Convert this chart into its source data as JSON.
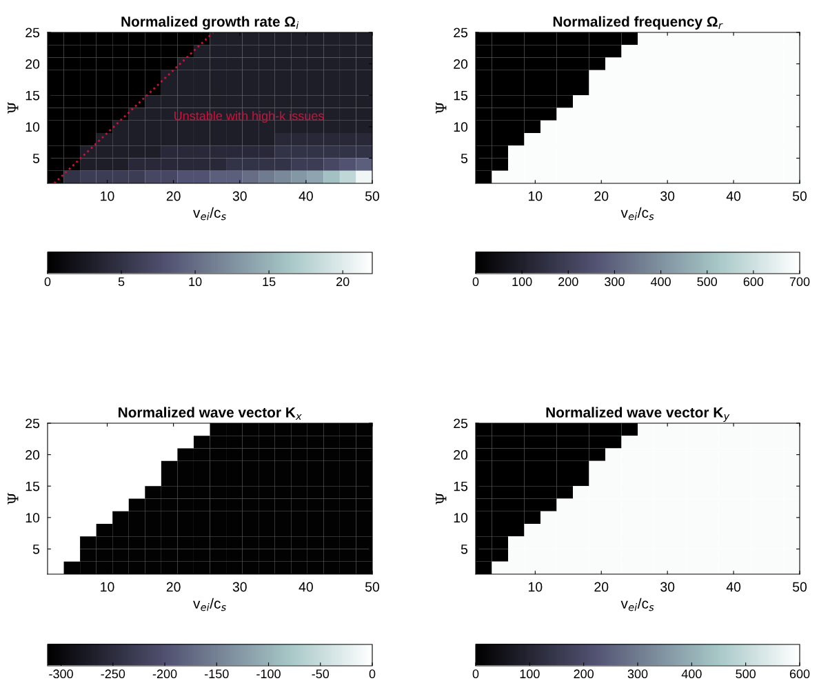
{
  "chart_data": [
    {
      "type": "heatmap",
      "title": "Normalized growth rate Ω$_{i}$",
      "xlabel": "v$_{ei}$/c$_{s}$",
      "ylabel": "Ψ",
      "x": [
        2.225,
        4.675,
        7.125,
        9.575,
        12.025,
        14.475,
        16.925,
        19.375,
        21.825,
        24.275,
        26.725,
        29.175,
        31.625,
        34.075,
        36.525,
        38.975,
        41.425,
        43.875,
        46.325,
        48.775
      ],
      "y": [
        24,
        22,
        20,
        18,
        16,
        14,
        12,
        10,
        8,
        6,
        4,
        2
      ],
      "xlim": [
        1,
        50
      ],
      "xticks": [
        10,
        20,
        30,
        40,
        50
      ],
      "ylim": [
        1,
        25
      ],
      "yticks": [
        5,
        10,
        15,
        20,
        25
      ],
      "clim": [
        0,
        22
      ],
      "cticks": [
        0,
        5,
        10,
        15,
        20
      ],
      "cells": [
        [
          0,
          0,
          0,
          0,
          0,
          0,
          0,
          0,
          0,
          0,
          3,
          3,
          3,
          3,
          3,
          3,
          3,
          3,
          3,
          3
        ],
        [
          0,
          0,
          0,
          0,
          0,
          0,
          0,
          0,
          0,
          3,
          3,
          3,
          3,
          3,
          3,
          3,
          3,
          3,
          3,
          3
        ],
        [
          0,
          0,
          0,
          0,
          0,
          0,
          0,
          0,
          3,
          3,
          3,
          3,
          3,
          3,
          3,
          3,
          3,
          3,
          3,
          3
        ],
        [
          0,
          0,
          0,
          0,
          0,
          0,
          0,
          3,
          3,
          3,
          3,
          3,
          3,
          3,
          3,
          3,
          3,
          3,
          3,
          3
        ],
        [
          0,
          0,
          0,
          0,
          0,
          0,
          0,
          3,
          3,
          3,
          3,
          3,
          3,
          3,
          3,
          3,
          3,
          3,
          3,
          3
        ],
        [
          0,
          0,
          0,
          0,
          0,
          0,
          3,
          3,
          3,
          3,
          3,
          3,
          3,
          3,
          3,
          3,
          3,
          3,
          3,
          3
        ],
        [
          0,
          0,
          0,
          0,
          0,
          3,
          3,
          3,
          3,
          3,
          3,
          3,
          3,
          3,
          3,
          3,
          3,
          3,
          3,
          3
        ],
        [
          0,
          0,
          0,
          0,
          3,
          3,
          3,
          3,
          3,
          3,
          3,
          3,
          3,
          3,
          3,
          3,
          3,
          3,
          3,
          3
        ],
        [
          0,
          0,
          0,
          3,
          3,
          3,
          3,
          3,
          3,
          3,
          3,
          3,
          3,
          3,
          4,
          4,
          4,
          4,
          4,
          4
        ],
        [
          0,
          0,
          3,
          3,
          3,
          3,
          3,
          4,
          4,
          4,
          4,
          4,
          4,
          4,
          5,
          5,
          5,
          5,
          5,
          5
        ],
        [
          0,
          0,
          3,
          3,
          3,
          4,
          4,
          4,
          4,
          4,
          4,
          5,
          5,
          5,
          5,
          6,
          6,
          7,
          8,
          9
        ],
        [
          0,
          5,
          6,
          6,
          6,
          6,
          7,
          7,
          8,
          8,
          9,
          9,
          10,
          11,
          12,
          13,
          14,
          16,
          18,
          21
        ]
      ],
      "series": [
        {
          "type": "line",
          "x": [
            2,
            26
          ],
          "values": [
            1,
            25
          ],
          "color": "#d0103a",
          "line_style": "dotted"
        }
      ],
      "annotations": [
        "Unstable with high-k issues"
      ]
    },
    {
      "type": "heatmap",
      "title": "Normalized frequency Ω$_{r}$",
      "xlabel": "v$_{ei}$/c$_{s}$",
      "ylabel": "Ψ",
      "x": [
        2.225,
        4.675,
        7.125,
        9.575,
        12.025,
        14.475,
        16.925,
        19.375,
        21.825,
        24.275,
        26.725,
        29.175,
        31.625,
        34.075,
        36.525,
        38.975,
        41.425,
        43.875,
        46.325,
        48.775
      ],
      "y": [
        24,
        22,
        20,
        18,
        16,
        14,
        12,
        10,
        8,
        6,
        4,
        2
      ],
      "xlim": [
        1,
        50
      ],
      "xticks": [
        10,
        20,
        30,
        40,
        50
      ],
      "ylim": [
        1,
        25
      ],
      "yticks": [
        5,
        10,
        15,
        20,
        25
      ],
      "clim": [
        0,
        700
      ],
      "cticks": [
        0,
        100,
        200,
        300,
        400,
        500,
        600,
        700
      ],
      "cells": [
        [
          0,
          0,
          0,
          0,
          0,
          0,
          0,
          0,
          0,
          0,
          690,
          690,
          690,
          690,
          690,
          690,
          690,
          690,
          690,
          690
        ],
        [
          0,
          0,
          0,
          0,
          0,
          0,
          0,
          0,
          0,
          690,
          690,
          690,
          690,
          690,
          690,
          690,
          690,
          690,
          690,
          690
        ],
        [
          0,
          0,
          0,
          0,
          0,
          0,
          0,
          0,
          690,
          690,
          690,
          690,
          690,
          690,
          690,
          690,
          690,
          690,
          690,
          690
        ],
        [
          0,
          0,
          0,
          0,
          0,
          0,
          0,
          690,
          690,
          690,
          690,
          690,
          690,
          690,
          690,
          690,
          690,
          690,
          690,
          690
        ],
        [
          0,
          0,
          0,
          0,
          0,
          0,
          0,
          690,
          690,
          690,
          690,
          690,
          690,
          690,
          690,
          690,
          690,
          690,
          690,
          690
        ],
        [
          0,
          0,
          0,
          0,
          0,
          0,
          690,
          690,
          690,
          690,
          690,
          690,
          690,
          690,
          690,
          690,
          690,
          690,
          690,
          690
        ],
        [
          0,
          0,
          0,
          0,
          0,
          690,
          690,
          690,
          690,
          690,
          690,
          690,
          690,
          690,
          690,
          690,
          690,
          690,
          690,
          690
        ],
        [
          0,
          0,
          0,
          0,
          690,
          690,
          690,
          690,
          690,
          690,
          690,
          690,
          690,
          690,
          690,
          690,
          690,
          690,
          690,
          690
        ],
        [
          0,
          0,
          0,
          690,
          690,
          690,
          690,
          690,
          690,
          690,
          690,
          690,
          690,
          690,
          690,
          690,
          690,
          690,
          690,
          690
        ],
        [
          0,
          0,
          690,
          690,
          690,
          690,
          690,
          690,
          690,
          690,
          690,
          690,
          690,
          690,
          690,
          690,
          690,
          690,
          690,
          690
        ],
        [
          0,
          0,
          690,
          690,
          690,
          690,
          690,
          690,
          690,
          690,
          690,
          690,
          690,
          690,
          690,
          690,
          690,
          690,
          690,
          690
        ],
        [
          0,
          690,
          690,
          690,
          690,
          690,
          690,
          690,
          690,
          690,
          690,
          690,
          690,
          690,
          690,
          690,
          690,
          690,
          690,
          690
        ]
      ]
    },
    {
      "type": "heatmap",
      "title": "Normalized wave vector K$_{x}$",
      "xlabel": "v$_{ei}$/c$_{s}$",
      "ylabel": "Ψ",
      "x": [
        2.225,
        4.675,
        7.125,
        9.575,
        12.025,
        14.475,
        16.925,
        19.375,
        21.825,
        24.275,
        26.725,
        29.175,
        31.625,
        34.075,
        36.525,
        38.975,
        41.425,
        43.875,
        46.325,
        48.775
      ],
      "y": [
        24,
        22,
        20,
        18,
        16,
        14,
        12,
        10,
        8,
        6,
        4,
        2
      ],
      "xlim": [
        1,
        50
      ],
      "xticks": [
        10,
        20,
        30,
        40,
        50
      ],
      "ylim": [
        1,
        25
      ],
      "yticks": [
        5,
        10,
        15,
        20,
        25
      ],
      "clim": [
        -313,
        0
      ],
      "cticks": [
        -300,
        -250,
        -200,
        -150,
        -100,
        -50,
        0
      ],
      "cells": [
        [
          0,
          0,
          0,
          0,
          0,
          0,
          0,
          0,
          0,
          0,
          -310,
          -310,
          -310,
          -310,
          -310,
          -310,
          -310,
          -310,
          -310,
          -310
        ],
        [
          0,
          0,
          0,
          0,
          0,
          0,
          0,
          0,
          0,
          -310,
          -310,
          -310,
          -310,
          -310,
          -310,
          -310,
          -310,
          -310,
          -310,
          -310
        ],
        [
          0,
          0,
          0,
          0,
          0,
          0,
          0,
          0,
          -310,
          -310,
          -310,
          -310,
          -310,
          -310,
          -310,
          -310,
          -310,
          -310,
          -310,
          -310
        ],
        [
          0,
          0,
          0,
          0,
          0,
          0,
          0,
          -310,
          -310,
          -310,
          -310,
          -310,
          -310,
          -310,
          -310,
          -310,
          -310,
          -310,
          -310,
          -310
        ],
        [
          0,
          0,
          0,
          0,
          0,
          0,
          0,
          -310,
          -310,
          -310,
          -310,
          -310,
          -310,
          -310,
          -310,
          -310,
          -310,
          -310,
          -310,
          -310
        ],
        [
          0,
          0,
          0,
          0,
          0,
          0,
          -310,
          -310,
          -310,
          -310,
          -310,
          -310,
          -310,
          -310,
          -310,
          -310,
          -310,
          -310,
          -310,
          -310
        ],
        [
          0,
          0,
          0,
          0,
          0,
          -310,
          -310,
          -310,
          -310,
          -310,
          -310,
          -310,
          -310,
          -310,
          -310,
          -310,
          -310,
          -310,
          -310,
          -310
        ],
        [
          0,
          0,
          0,
          0,
          -310,
          -310,
          -310,
          -310,
          -310,
          -310,
          -310,
          -310,
          -310,
          -310,
          -310,
          -310,
          -310,
          -310,
          -310,
          -310
        ],
        [
          0,
          0,
          0,
          -310,
          -310,
          -310,
          -310,
          -310,
          -310,
          -310,
          -310,
          -310,
          -310,
          -310,
          -310,
          -310,
          -310,
          -310,
          -310,
          -310
        ],
        [
          0,
          0,
          -310,
          -310,
          -310,
          -310,
          -310,
          -310,
          -310,
          -310,
          -310,
          -310,
          -310,
          -310,
          -310,
          -310,
          -310,
          -310,
          -310,
          -310
        ],
        [
          0,
          0,
          -310,
          -310,
          -310,
          -310,
          -310,
          -310,
          -310,
          -310,
          -310,
          -310,
          -310,
          -310,
          -310,
          -310,
          -310,
          -310,
          -310,
          -310
        ],
        [
          0,
          -310,
          -310,
          -310,
          -310,
          -310,
          -310,
          -310,
          -310,
          -310,
          -310,
          -310,
          -310,
          -310,
          -310,
          -310,
          -310,
          -310,
          -310,
          -310
        ]
      ]
    },
    {
      "type": "heatmap",
      "title": "Normalized wave vector K$_{y}$",
      "xlabel": "v$_{ei}$/c$_{s}$",
      "ylabel": "Ψ",
      "x": [
        2.225,
        4.675,
        7.125,
        9.575,
        12.025,
        14.475,
        16.925,
        19.375,
        21.825,
        24.275,
        26.725,
        29.175,
        31.625,
        34.075,
        36.525,
        38.975,
        41.425,
        43.875,
        46.325,
        48.775
      ],
      "y": [
        24,
        22,
        20,
        18,
        16,
        14,
        12,
        10,
        8,
        6,
        4,
        2
      ],
      "xlim": [
        1,
        50
      ],
      "xticks": [
        10,
        20,
        30,
        40,
        50
      ],
      "ylim": [
        1,
        25
      ],
      "yticks": [
        5,
        10,
        15,
        20,
        25
      ],
      "clim": [
        0,
        600
      ],
      "cticks": [
        0,
        100,
        200,
        300,
        400,
        500,
        600
      ],
      "cells": [
        [
          0,
          0,
          0,
          0,
          0,
          0,
          0,
          0,
          0,
          0,
          590,
          590,
          590,
          590,
          590,
          590,
          590,
          590,
          590,
          590
        ],
        [
          0,
          0,
          0,
          0,
          0,
          0,
          0,
          0,
          0,
          590,
          590,
          590,
          590,
          590,
          590,
          590,
          590,
          590,
          590,
          590
        ],
        [
          0,
          0,
          0,
          0,
          0,
          0,
          0,
          0,
          590,
          590,
          590,
          590,
          590,
          590,
          590,
          590,
          590,
          590,
          590,
          590
        ],
        [
          0,
          0,
          0,
          0,
          0,
          0,
          0,
          590,
          590,
          590,
          590,
          590,
          590,
          590,
          590,
          590,
          590,
          590,
          590,
          590
        ],
        [
          0,
          0,
          0,
          0,
          0,
          0,
          0,
          590,
          590,
          590,
          590,
          590,
          590,
          590,
          590,
          590,
          590,
          590,
          590,
          590
        ],
        [
          0,
          0,
          0,
          0,
          0,
          0,
          590,
          590,
          590,
          590,
          590,
          590,
          590,
          590,
          590,
          590,
          590,
          590,
          590,
          590
        ],
        [
          0,
          0,
          0,
          0,
          0,
          590,
          590,
          590,
          590,
          590,
          590,
          590,
          590,
          590,
          590,
          590,
          590,
          590,
          590,
          590
        ],
        [
          0,
          0,
          0,
          0,
          590,
          590,
          590,
          590,
          590,
          590,
          590,
          590,
          590,
          590,
          590,
          590,
          590,
          590,
          590,
          590
        ],
        [
          0,
          0,
          0,
          590,
          590,
          590,
          590,
          590,
          590,
          590,
          590,
          590,
          590,
          590,
          590,
          590,
          590,
          590,
          590,
          590
        ],
        [
          0,
          0,
          590,
          590,
          590,
          590,
          590,
          590,
          590,
          590,
          590,
          590,
          590,
          590,
          590,
          590,
          590,
          590,
          590,
          590
        ],
        [
          0,
          0,
          590,
          590,
          590,
          590,
          590,
          590,
          590,
          590,
          590,
          590,
          590,
          590,
          590,
          590,
          590,
          590,
          590,
          590
        ],
        [
          0,
          590,
          590,
          590,
          590,
          590,
          590,
          590,
          590,
          590,
          590,
          590,
          590,
          590,
          590,
          590,
          590,
          590,
          590,
          590
        ]
      ]
    }
  ]
}
